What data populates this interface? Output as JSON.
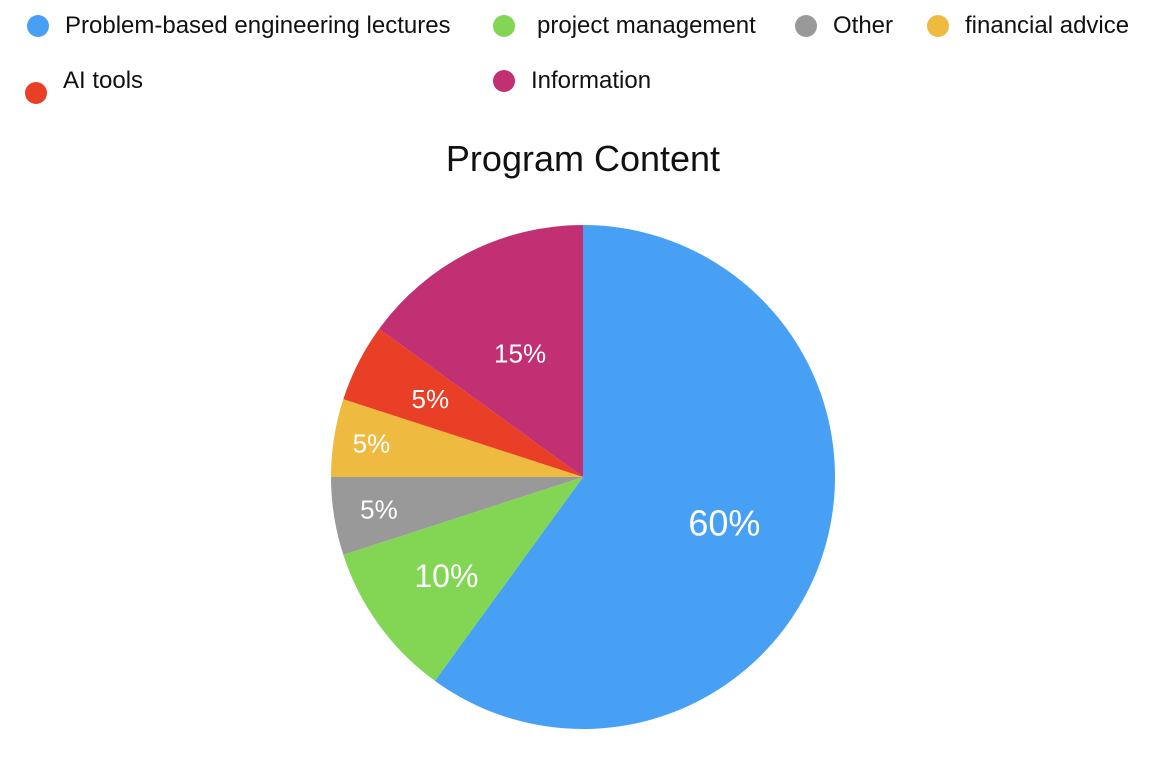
{
  "chart_data": {
    "type": "pie",
    "title": "Program Content",
    "start_angle_deg": 0,
    "direction": "clockwise",
    "legend_position": "top",
    "slices": [
      {
        "label": "Problem-based engineering lectures",
        "value": 60,
        "value_label": "60%",
        "color": "#48A0F4"
      },
      {
        "label": "project management",
        "value": 10,
        "value_label": "10%",
        "color": "#82D654"
      },
      {
        "label": "Other",
        "value": 5,
        "value_label": "5%",
        "color": "#999999"
      },
      {
        "label": "financial advice",
        "value": 5,
        "value_label": "5%",
        "color": "#EFBA40"
      },
      {
        "label": "AI tools",
        "value": 5,
        "value_label": "5%",
        "color": "#E83F26"
      },
      {
        "label": "Information",
        "value": 15,
        "value_label": "15%",
        "color": "#C13072"
      }
    ],
    "legend": [
      "Problem-based engineering lectures",
      "project management",
      "Other",
      "financial advice",
      "AI tools",
      "Information"
    ]
  }
}
